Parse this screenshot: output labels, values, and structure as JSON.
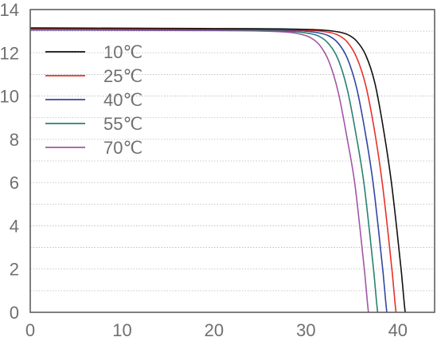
{
  "chart_data": {
    "type": "line",
    "title": "",
    "xlabel": "",
    "ylabel": "",
    "xlim": [
      0,
      44
    ],
    "ylim": [
      0,
      14
    ],
    "x_ticks": [
      "0",
      "10",
      "20",
      "30",
      "40"
    ],
    "y_ticks": [
      "0",
      "2",
      "4",
      "6",
      "8",
      "10",
      "12",
      "14"
    ],
    "grid": "horizontal dotted",
    "legend_position": "top-left",
    "series": [
      {
        "name": "10℃",
        "color": "#111111",
        "x": [
          0,
          20,
          30,
          33,
          34.5,
          35.5,
          36.5,
          37.5,
          38.5,
          39.3,
          39.9,
          40.4,
          40.7,
          40.8
        ],
        "y": [
          13.15,
          13.12,
          13.08,
          13.0,
          12.85,
          12.55,
          11.9,
          10.6,
          8.3,
          6.0,
          3.8,
          1.8,
          0.4,
          0
        ]
      },
      {
        "name": "25℃",
        "color": "#e8302a",
        "x": [
          0,
          20,
          30,
          32,
          33.5,
          34.5,
          35.5,
          36.5,
          37.5,
          38.3,
          38.9,
          39.4,
          39.7,
          39.8
        ],
        "y": [
          13.12,
          13.1,
          13.05,
          12.98,
          12.82,
          12.5,
          11.8,
          10.5,
          8.3,
          6.0,
          3.8,
          1.8,
          0.4,
          0
        ]
      },
      {
        "name": "40℃",
        "color": "#3346a0",
        "x": [
          0,
          20,
          29,
          31,
          32.5,
          33.5,
          34.5,
          35.5,
          36.5,
          37.3,
          37.9,
          38.4,
          38.7,
          38.8
        ],
        "y": [
          13.1,
          13.08,
          13.03,
          12.95,
          12.78,
          12.45,
          11.75,
          10.4,
          8.2,
          6.0,
          3.8,
          1.8,
          0.4,
          0
        ]
      },
      {
        "name": "55℃",
        "color": "#2a8070",
        "x": [
          0,
          20,
          28,
          30,
          31.5,
          32.5,
          33.5,
          34.5,
          35.5,
          36.3,
          36.9,
          37.4,
          37.7,
          37.8
        ],
        "y": [
          13.08,
          13.06,
          13.0,
          12.92,
          12.75,
          12.4,
          11.7,
          10.3,
          8.1,
          6.0,
          3.8,
          1.8,
          0.4,
          0
        ]
      },
      {
        "name": "70℃",
        "color": "#a256a8",
        "x": [
          0,
          20,
          27,
          29,
          30.5,
          31.5,
          32.5,
          33.5,
          34.5,
          35.3,
          35.9,
          36.4,
          36.7,
          36.8
        ],
        "y": [
          13.05,
          13.03,
          12.98,
          12.9,
          12.7,
          12.35,
          11.6,
          10.2,
          8.0,
          6.0,
          3.8,
          1.8,
          0.4,
          0
        ]
      }
    ]
  }
}
